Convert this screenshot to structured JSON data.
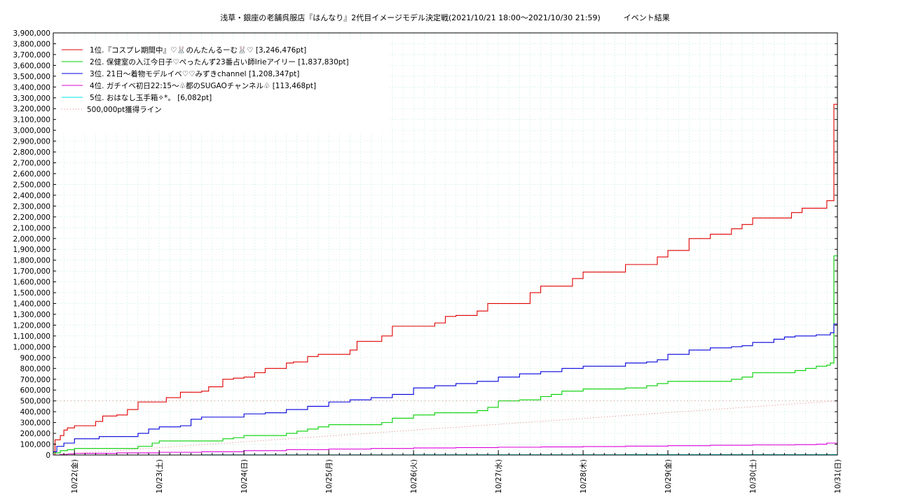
{
  "chart_data": {
    "type": "line",
    "title": "浅草・銀座の老舗呉服店『はんなり』2代目イメージモデル決定戦(2021/10/21 18:00～2021/10/30 21:59)　　　イベント結果",
    "xlabel": "",
    "ylabel": "",
    "ylim": [
      0,
      3900000
    ],
    "y_ticks": [
      "0",
      "100,000",
      "200,000",
      "300,000",
      "400,000",
      "500,000",
      "600,000",
      "700,000",
      "800,000",
      "900,000",
      "1,000,000",
      "1,100,000",
      "1,200,000",
      "1,300,000",
      "1,400,000",
      "1,500,000",
      "1,600,000",
      "1,700,000",
      "1,800,000",
      "1,900,000",
      "2,000,000",
      "2,100,000",
      "2,200,000",
      "2,300,000",
      "2,400,000",
      "2,500,000",
      "2,600,000",
      "2,700,000",
      "2,800,000",
      "2,900,000",
      "3,000,000",
      "3,100,000",
      "3,200,000",
      "3,300,000",
      "3,400,000",
      "3,500,000",
      "3,600,000",
      "3,700,000",
      "3,800,000",
      "3,900,000"
    ],
    "x_range_hours": [
      18,
      240
    ],
    "x_ticks": [
      {
        "label": "10/22(金)",
        "hour": 24
      },
      {
        "label": "10/23(土)",
        "hour": 48
      },
      {
        "label": "10/24(日)",
        "hour": 72
      },
      {
        "label": "10/25(月)",
        "hour": 96
      },
      {
        "label": "10/26(火)",
        "hour": 120
      },
      {
        "label": "10/27(水)",
        "hour": 144
      },
      {
        "label": "10/28(木)",
        "hour": 168
      },
      {
        "label": "10/29(金)",
        "hour": 192
      },
      {
        "label": "10/30(土)",
        "hour": 216
      },
      {
        "label": "10/31(日)",
        "hour": 240
      }
    ],
    "grid": true,
    "legend_position": "top-left",
    "series": [
      {
        "name": "1位.『コスプレ期間中』♡🐰のんたんるーむ🐰♡ [3,246,476pt]",
        "color": "#e00000",
        "style": "solid",
        "x": [
          18,
          18.5,
          20,
          21,
          22,
          24,
          27,
          30,
          32,
          36,
          39,
          42,
          48,
          50,
          54,
          60,
          62,
          66,
          69,
          72,
          75,
          78,
          84,
          86,
          90,
          93,
          96,
          102,
          104,
          108,
          111,
          114,
          117,
          120,
          126,
          129,
          132,
          138,
          141,
          144,
          150,
          153,
          156,
          162,
          165,
          168,
          174,
          180,
          186,
          189,
          192,
          198,
          201,
          204,
          210,
          213,
          216,
          224,
          227,
          230,
          234,
          237,
          238,
          239,
          240
        ],
        "y": [
          0,
          140000,
          180000,
          230000,
          250000,
          270000,
          270000,
          310000,
          360000,
          370000,
          420000,
          490000,
          490000,
          530000,
          580000,
          590000,
          630000,
          700000,
          710000,
          720000,
          760000,
          800000,
          850000,
          860000,
          910000,
          930000,
          930000,
          970000,
          1050000,
          1050000,
          1100000,
          1190000,
          1190000,
          1190000,
          1220000,
          1280000,
          1290000,
          1330000,
          1400000,
          1400000,
          1400000,
          1500000,
          1560000,
          1560000,
          1630000,
          1690000,
          1690000,
          1760000,
          1760000,
          1830000,
          1890000,
          2000000,
          2000000,
          2040000,
          2090000,
          2130000,
          2190000,
          2190000,
          2240000,
          2280000,
          2280000,
          2350000,
          2350000,
          3240000,
          3246476
        ]
      },
      {
        "name": "2位. 保健室の入江今日子♡ぺったんず23番占い師Irieアイリー [1,837,830pt]",
        "color": "#00d000",
        "style": "solid",
        "x": [
          18,
          20,
          22,
          24,
          36,
          42,
          46,
          48,
          60,
          66,
          69,
          72,
          84,
          87,
          90,
          93,
          96,
          108,
          111,
          114,
          120,
          126,
          132,
          138,
          141,
          144,
          150,
          156,
          159,
          162,
          168,
          180,
          186,
          189,
          192,
          204,
          210,
          213,
          216,
          228,
          231,
          234,
          237,
          238,
          239,
          240
        ],
        "y": [
          20000,
          40000,
          50000,
          60000,
          60000,
          80000,
          110000,
          130000,
          130000,
          150000,
          160000,
          180000,
          200000,
          220000,
          240000,
          260000,
          280000,
          280000,
          300000,
          340000,
          370000,
          390000,
          390000,
          410000,
          440000,
          500000,
          510000,
          540000,
          560000,
          590000,
          610000,
          620000,
          640000,
          660000,
          680000,
          680000,
          700000,
          720000,
          760000,
          780000,
          800000,
          820000,
          830000,
          850000,
          1840000,
          1837830
        ]
      },
      {
        "name": "3位. 21日〜着物モデルイベ♡♡みずきchannel [1,208,347pt]",
        "color": "#0000dd",
        "style": "solid",
        "x": [
          18,
          19,
          21,
          24,
          31,
          42,
          45,
          48,
          54,
          57,
          60,
          72,
          78,
          84,
          90,
          96,
          102,
          108,
          114,
          120,
          126,
          132,
          138,
          144,
          150,
          156,
          162,
          168,
          180,
          186,
          189,
          192,
          198,
          204,
          210,
          213,
          216,
          222,
          225,
          228,
          234,
          238,
          239,
          240
        ],
        "y": [
          30000,
          80000,
          110000,
          150000,
          170000,
          200000,
          240000,
          260000,
          270000,
          330000,
          350000,
          380000,
          390000,
          420000,
          450000,
          490000,
          510000,
          530000,
          560000,
          620000,
          640000,
          660000,
          680000,
          720000,
          750000,
          770000,
          800000,
          820000,
          850000,
          860000,
          880000,
          930000,
          970000,
          990000,
          1000000,
          1010000,
          1040000,
          1070000,
          1090000,
          1100000,
          1110000,
          1130000,
          1210000,
          1208347
        ]
      },
      {
        "name": "4位. ガチイベ初日22:15〜♧都のSUGAOチャンネル♧ [113,468pt]",
        "color": "#dd00dd",
        "style": "solid",
        "x": [
          18,
          20,
          22,
          24,
          36,
          48,
          60,
          72,
          84,
          96,
          108,
          120,
          132,
          144,
          156,
          168,
          180,
          192,
          204,
          216,
          228,
          234,
          237,
          240
        ],
        "y": [
          0,
          5000,
          10000,
          15000,
          20000,
          25000,
          30000,
          40000,
          50000,
          55000,
          60000,
          65000,
          68000,
          72000,
          75000,
          78000,
          82000,
          86000,
          90000,
          93000,
          96000,
          100000,
          110000,
          113468
        ]
      },
      {
        "name": "5位. おはなし玉手箱✧*。 [6,082pt]",
        "color": "#00e0e0",
        "style": "solid",
        "x": [
          18,
          60,
          120,
          180,
          240
        ],
        "y": [
          0,
          1000,
          2000,
          4000,
          6082
        ]
      },
      {
        "name": "500,000pt獲得ライン",
        "color": "#e08080",
        "style": "dotted",
        "x": [
          18,
          240
        ],
        "y": [
          0,
          500000
        ]
      }
    ]
  }
}
